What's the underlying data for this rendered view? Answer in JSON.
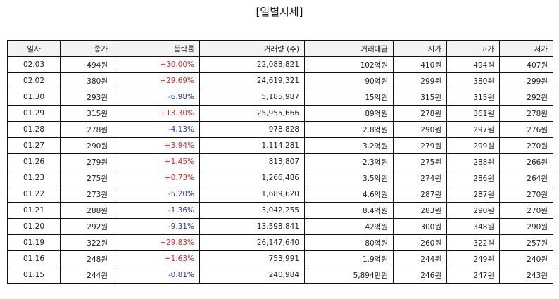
{
  "title": "[일별시세]",
  "columns": [
    "일자",
    "종가",
    "등락률",
    "거래량 (주)",
    "거래대금",
    "시가",
    "고가",
    "저가"
  ],
  "rows": [
    {
      "date": "02.03",
      "close": "494원",
      "change": "+30.00%",
      "dir": "up",
      "volume": "22,088,821",
      "amount": "102억원",
      "open": "410원",
      "high": "494원",
      "low": "407원"
    },
    {
      "date": "02.02",
      "close": "380원",
      "change": "+29.69%",
      "dir": "up",
      "volume": "24,619,321",
      "amount": "90억원",
      "open": "299원",
      "high": "380원",
      "low": "299원"
    },
    {
      "date": "01.30",
      "close": "293원",
      "change": "-6.98%",
      "dir": "down",
      "volume": "5,185,987",
      "amount": "15억원",
      "open": "315원",
      "high": "315원",
      "low": "292원"
    },
    {
      "date": "01.29",
      "close": "315원",
      "change": "+13.30%",
      "dir": "up",
      "volume": "25,955,666",
      "amount": "89억원",
      "open": "278원",
      "high": "361원",
      "low": "278원"
    },
    {
      "date": "01.28",
      "close": "278원",
      "change": "-4.13%",
      "dir": "down",
      "volume": "978,828",
      "amount": "2.8억원",
      "open": "290원",
      "high": "297원",
      "low": "276원"
    },
    {
      "date": "01.27",
      "close": "290원",
      "change": "+3.94%",
      "dir": "up",
      "volume": "1,114,281",
      "amount": "3.2억원",
      "open": "279원",
      "high": "299원",
      "low": "270원"
    },
    {
      "date": "01.26",
      "close": "279원",
      "change": "+1.45%",
      "dir": "up",
      "volume": "813,807",
      "amount": "2.3억원",
      "open": "275원",
      "high": "288원",
      "low": "266원"
    },
    {
      "date": "01.23",
      "close": "275원",
      "change": "+0.73%",
      "dir": "up",
      "volume": "1,266,486",
      "amount": "3.5억원",
      "open": "274원",
      "high": "286원",
      "low": "264원"
    },
    {
      "date": "01.22",
      "close": "273원",
      "change": "-5.20%",
      "dir": "down",
      "volume": "1,689,620",
      "amount": "4.6억원",
      "open": "287원",
      "high": "287원",
      "low": "270원"
    },
    {
      "date": "01.21",
      "close": "288원",
      "change": "-1.36%",
      "dir": "down",
      "volume": "3,042,255",
      "amount": "8.4억원",
      "open": "283원",
      "high": "290원",
      "low": "270원"
    },
    {
      "date": "01.20",
      "close": "292원",
      "change": "-9.31%",
      "dir": "down",
      "volume": "13,598,841",
      "amount": "42억원",
      "open": "300원",
      "high": "348원",
      "low": "290원"
    },
    {
      "date": "01.19",
      "close": "322원",
      "change": "+29.83%",
      "dir": "up",
      "volume": "26,147,640",
      "amount": "80억원",
      "open": "260원",
      "high": "322원",
      "low": "257원"
    },
    {
      "date": "01.16",
      "close": "248원",
      "change": "+1.63%",
      "dir": "up",
      "volume": "753,991",
      "amount": "1.9억원",
      "open": "244원",
      "high": "249원",
      "low": "240원"
    },
    {
      "date": "01.15",
      "close": "244원",
      "change": "-0.81%",
      "dir": "down",
      "volume": "240,984",
      "amount": "5,894만원",
      "open": "246원",
      "high": "247원",
      "low": "243원"
    }
  ],
  "colors": {
    "up": "#e8262a",
    "down": "#2b35b8",
    "header_bg": "#f3f3f3",
    "border": "#111111"
  }
}
